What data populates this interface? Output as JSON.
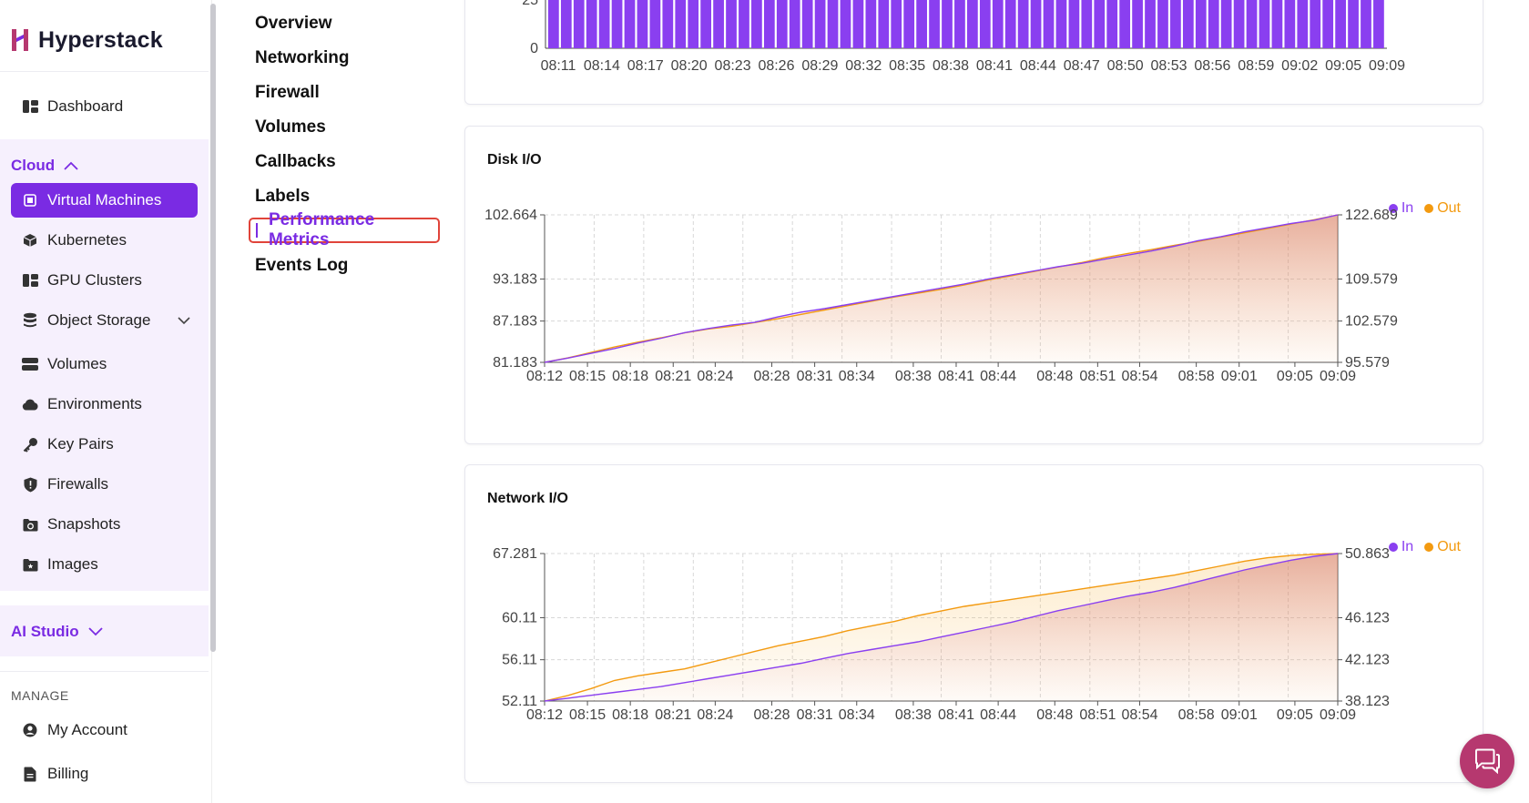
{
  "brand": {
    "name": "Hyperstack"
  },
  "sidebar": {
    "dashboard": "Dashboard",
    "cloud_label": "Cloud",
    "cloud_items": [
      {
        "label": "Virtual Machines",
        "icon": "chip-icon"
      },
      {
        "label": "Kubernetes",
        "icon": "cube-icon"
      },
      {
        "label": "GPU Clusters",
        "icon": "cluster-icon"
      },
      {
        "label": "Object Storage",
        "icon": "database-icon"
      },
      {
        "label": "Volumes",
        "icon": "volumes-icon"
      },
      {
        "label": "Environments",
        "icon": "cloud-icon"
      },
      {
        "label": "Key Pairs",
        "icon": "key-icon"
      },
      {
        "label": "Firewalls",
        "icon": "shield-icon"
      },
      {
        "label": "Snapshots",
        "icon": "snapshot-icon"
      },
      {
        "label": "Images",
        "icon": "image-icon"
      }
    ],
    "ai_studio_label": "AI Studio",
    "manage_label": "MANAGE",
    "manage_items": [
      {
        "label": "My Account",
        "icon": "account-icon"
      },
      {
        "label": "Billing",
        "icon": "billing-icon"
      }
    ]
  },
  "subnav": {
    "items": [
      "Overview",
      "Networking",
      "Firewall",
      "Volumes",
      "Callbacks",
      "Labels"
    ],
    "active": "Performance Metrics",
    "after": "Events Log"
  },
  "colors": {
    "accent": "#7a2be3",
    "in": "#8a3ff0",
    "out": "#f39a10",
    "fill": "#d98a8a"
  },
  "top_chart": {
    "y_labels": [
      "25",
      "0"
    ],
    "x_labels": [
      "08:11",
      "08:14",
      "08:17",
      "08:20",
      "08:23",
      "08:26",
      "08:29",
      "08:32",
      "08:35",
      "08:38",
      "08:41",
      "08:44",
      "08:47",
      "08:50",
      "08:53",
      "08:56",
      "08:59",
      "09:02",
      "09:05",
      "09:09"
    ]
  },
  "chart_data": [
    {
      "type": "area",
      "title": "Disk I/O",
      "legend": [
        "In",
        "Out"
      ],
      "legend_position": "top-right",
      "x_ticks": [
        "08:12",
        "08:15",
        "08:18",
        "08:21",
        "08:24",
        "08:28",
        "08:31",
        "08:34",
        "08:38",
        "08:41",
        "08:44",
        "08:48",
        "08:51",
        "08:54",
        "08:58",
        "09:01",
        "09:05",
        "09:09"
      ],
      "left_ticks": [
        "102.664",
        "93.183",
        "87.183",
        "81.183"
      ],
      "right_ticks": [
        "122.689",
        "109.579",
        "102.579",
        "95.579"
      ],
      "left_range": [
        81.183,
        102.664
      ],
      "right_range": [
        95.579,
        122.689
      ],
      "series": [
        {
          "name": "In",
          "axis": "left",
          "values": [
            81.18,
            81.8,
            82.5,
            83.2,
            84.0,
            84.7,
            85.5,
            86.1,
            86.6,
            87.0,
            87.8,
            88.5,
            89.0,
            89.6,
            90.2,
            90.8,
            91.4,
            92.0,
            92.6,
            93.3,
            93.9,
            94.5,
            95.1,
            95.6,
            96.2,
            96.8,
            97.4,
            98.1,
            98.9,
            99.5,
            100.2,
            100.8,
            101.4,
            101.9,
            102.66
          ]
        },
        {
          "name": "Out",
          "axis": "right",
          "values": [
            95.58,
            96.4,
            97.4,
            98.4,
            99.3,
            100.1,
            101.0,
            101.7,
            102.2,
            102.9,
            103.6,
            104.4,
            105.2,
            106.0,
            106.8,
            107.6,
            108.3,
            109.0,
            109.8,
            110.7,
            111.5,
            112.3,
            113.1,
            113.9,
            114.8,
            115.6,
            116.3,
            117.1,
            117.8,
            118.6,
            119.4,
            120.2,
            121.0,
            121.8,
            122.69
          ]
        }
      ]
    },
    {
      "type": "area",
      "title": "Network I/O",
      "legend": [
        "In",
        "Out"
      ],
      "legend_position": "top-right",
      "x_ticks": [
        "08:12",
        "08:15",
        "08:18",
        "08:21",
        "08:24",
        "08:28",
        "08:31",
        "08:34",
        "08:38",
        "08:41",
        "08:44",
        "08:48",
        "08:51",
        "08:54",
        "08:58",
        "09:01",
        "09:05",
        "09:09"
      ],
      "left_ticks": [
        "67.281",
        "60.11",
        "56.11",
        "52.11"
      ],
      "right_ticks": [
        "50.863",
        "46.123",
        "42.123",
        "38.123"
      ],
      "left_range": [
        52.11,
        67.281
      ],
      "right_range": [
        38.123,
        50.863
      ],
      "series": [
        {
          "name": "In",
          "axis": "left",
          "values": [
            52.11,
            52.4,
            52.7,
            53.0,
            53.3,
            53.6,
            54.0,
            54.4,
            54.8,
            55.2,
            55.6,
            56.0,
            56.5,
            57.0,
            57.4,
            57.8,
            58.2,
            58.7,
            59.2,
            59.7,
            60.2,
            60.8,
            61.4,
            61.9,
            62.4,
            62.9,
            63.3,
            63.8,
            64.4,
            65.0,
            65.6,
            66.1,
            66.6,
            67.0,
            67.28
          ]
        },
        {
          "name": "Out",
          "axis": "right",
          "values": [
            38.12,
            38.6,
            39.2,
            39.9,
            40.3,
            40.6,
            40.9,
            41.4,
            41.9,
            42.4,
            42.9,
            43.3,
            43.7,
            44.2,
            44.6,
            45.0,
            45.5,
            45.9,
            46.3,
            46.6,
            46.9,
            47.2,
            47.5,
            47.8,
            48.1,
            48.4,
            48.7,
            49.0,
            49.4,
            49.8,
            50.2,
            50.5,
            50.7,
            50.8,
            50.863
          ]
        }
      ]
    }
  ]
}
